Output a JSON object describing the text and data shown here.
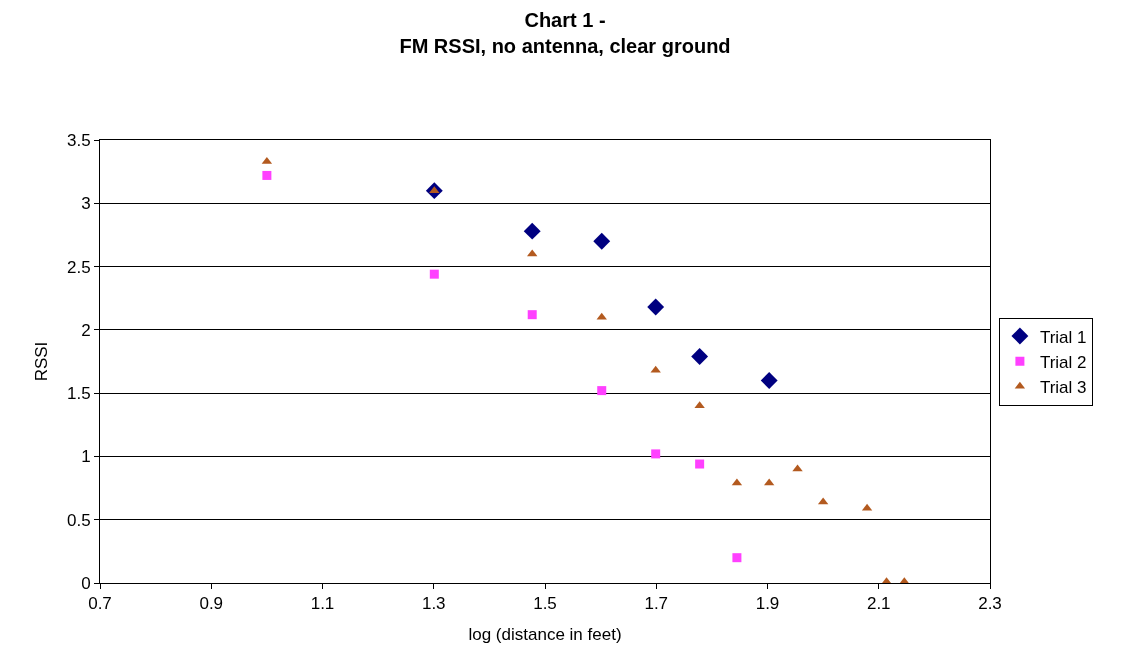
{
  "chart_data": {
    "type": "scatter",
    "title": "Chart 1 -\nFM RSSI, no antenna, clear ground",
    "xlabel": "log (distance in feet)",
    "ylabel": "RSSI",
    "xlim": [
      0.7,
      2.3
    ],
    "xticks": [
      0.7,
      0.9,
      1.1,
      1.3,
      1.5,
      1.7,
      1.9,
      2.1,
      2.3
    ],
    "ylim": [
      0,
      3.5
    ],
    "yticks": [
      0,
      0.5,
      1,
      1.5,
      2,
      2.5,
      3,
      3.5
    ],
    "grid": "y",
    "legend": "right",
    "series": [
      {
        "name": "Trial 1",
        "color": "#000080",
        "marker": "diamond",
        "x": [
          1.301,
          1.477,
          1.602,
          1.699,
          1.778,
          1.903
        ],
        "values": [
          3.1,
          2.78,
          2.7,
          2.18,
          1.79,
          1.6
        ]
      },
      {
        "name": "Trial 2",
        "color": "#ff40ff",
        "marker": "square",
        "x": [
          1.0,
          1.301,
          1.477,
          1.602,
          1.699,
          1.778,
          1.845
        ],
        "values": [
          3.22,
          2.44,
          2.12,
          1.52,
          1.02,
          0.94,
          0.2
        ]
      },
      {
        "name": "Trial 3",
        "color": "#b35a1f",
        "marker": "triangle",
        "x": [
          1.0,
          1.301,
          1.477,
          1.602,
          1.699,
          1.778,
          1.845,
          1.903,
          1.954,
          2.0,
          2.079,
          2.114,
          2.146
        ],
        "values": [
          3.33,
          3.1,
          2.6,
          2.1,
          1.68,
          1.4,
          0.79,
          0.79,
          0.9,
          0.64,
          0.59,
          0.01,
          0.01
        ]
      }
    ]
  }
}
